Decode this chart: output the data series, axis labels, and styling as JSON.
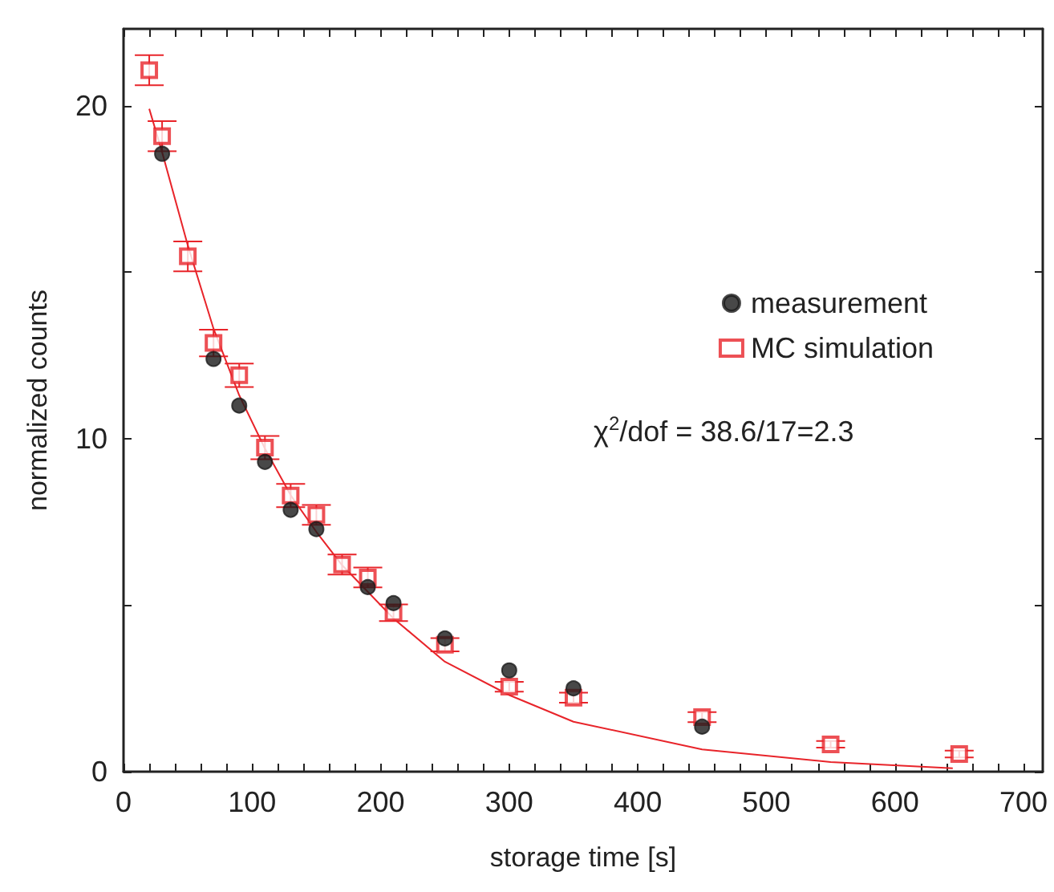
{
  "chart_data": {
    "type": "scatter",
    "xlabel": "storage time [s]",
    "ylabel": "normalized counts",
    "xlim": [
      0,
      715
    ],
    "ylim": [
      0,
      22.3
    ],
    "xticks": [
      0,
      {
        "value": 20,
        "label": null
      },
      {
        "value": 40,
        "label": null
      },
      {
        "value": 60,
        "label": null
      },
      {
        "value": 80,
        "label": null
      },
      100,
      {
        "value": 120,
        "label": null
      },
      {
        "value": 140,
        "label": null
      },
      {
        "value": 160,
        "label": null
      },
      {
        "value": 180,
        "label": null
      },
      200,
      {
        "value": 220,
        "label": null
      },
      {
        "value": 240,
        "label": null
      },
      {
        "value": 260,
        "label": null
      },
      {
        "value": 280,
        "label": null
      },
      300,
      {
        "value": 320,
        "label": null
      },
      {
        "value": 340,
        "label": null
      },
      {
        "value": 360,
        "label": null
      },
      {
        "value": 380,
        "label": null
      },
      400,
      {
        "value": 420,
        "label": null
      },
      {
        "value": 440,
        "label": null
      },
      {
        "value": 460,
        "label": null
      },
      {
        "value": 480,
        "label": null
      },
      500,
      {
        "value": 520,
        "label": null
      },
      {
        "value": 540,
        "label": null
      },
      {
        "value": 560,
        "label": null
      },
      {
        "value": 580,
        "label": null
      },
      600,
      {
        "value": 620,
        "label": null
      },
      {
        "value": 640,
        "label": null
      },
      {
        "value": 660,
        "label": null
      },
      {
        "value": 680,
        "label": null
      },
      700
    ],
    "yticks": [
      0,
      {
        "value": 5,
        "label": null
      },
      10,
      {
        "value": 15,
        "label": null
      },
      20
    ],
    "x": [
      20,
      30,
      50,
      70,
      90,
      110,
      130,
      150,
      170,
      190,
      210,
      250,
      300,
      350,
      450,
      550,
      650
    ],
    "series": [
      {
        "name": "measurement",
        "marker": "circle",
        "color": "#1a1a1a",
        "values": [
          null,
          18.55,
          null,
          12.39,
          10.99,
          9.3,
          7.86,
          7.28,
          null,
          5.54,
          5.06,
          4.0,
          3.04,
          2.5,
          1.35,
          null,
          null
        ]
      },
      {
        "name": "MC simulation",
        "marker": "square",
        "color": "#e8242a",
        "values": [
          21.06,
          19.08,
          15.47,
          12.87,
          11.9,
          9.73,
          8.29,
          7.71,
          6.22,
          5.83,
          4.77,
          3.81,
          2.55,
          2.22,
          1.64,
          0.82,
          0.53
        ],
        "errors": [
          0.45,
          0.45,
          0.45,
          0.4,
          0.35,
          0.35,
          0.35,
          0.3,
          0.3,
          0.3,
          0.25,
          0.2,
          0.15,
          0.15,
          0.15,
          0.1,
          0.1
        ]
      },
      {
        "type": "line",
        "marker": "none",
        "color": "#e8242a",
        "x": [
          20,
          30,
          50,
          70,
          90,
          110,
          130,
          150,
          170,
          190,
          210,
          250,
          300,
          350,
          450,
          550,
          645
        ],
        "values": [
          19.9,
          18.6,
          15.8,
          13.3,
          11.3,
          9.7,
          8.3,
          7.2,
          6.2,
          5.4,
          4.6,
          3.3,
          2.3,
          1.5,
          0.67,
          0.29,
          0.1
        ]
      }
    ],
    "annotations": [
      "χ$^{2}$/dof = 38.6/17=2.3"
    ],
    "legend": "right",
    "grid": false
  }
}
